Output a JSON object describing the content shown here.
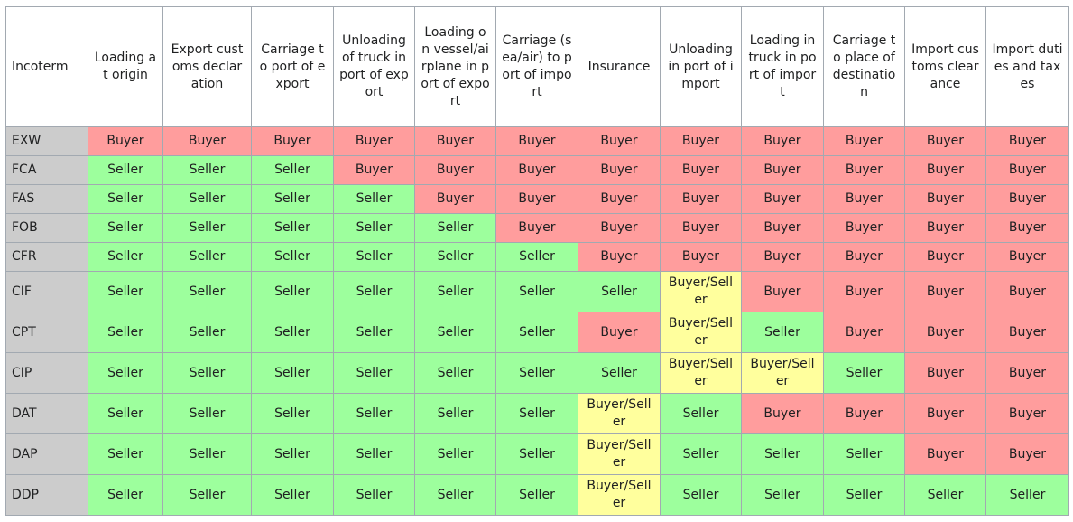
{
  "table": {
    "corner_label": "Incoterm",
    "columns": [
      "Loading at origin",
      "Export customs declaration",
      "Carriage to port of export",
      "Unloading of truck in port of export",
      "Loading on vessel/airplane in port of export",
      "Carriage (sea/air) to port of import",
      "Insurance",
      "Unloading in port of import",
      "Loading in truck in port of import",
      "Carriage to place of destination",
      "Import customs clearance",
      "Import duties and taxes"
    ],
    "rows": [
      {
        "term": "EXW",
        "cells": [
          "Buyer",
          "Buyer",
          "Buyer",
          "Buyer",
          "Buyer",
          "Buyer",
          "Buyer",
          "Buyer",
          "Buyer",
          "Buyer",
          "Buyer",
          "Buyer"
        ]
      },
      {
        "term": "FCA",
        "cells": [
          "Seller",
          "Seller",
          "Seller",
          "Buyer",
          "Buyer",
          "Buyer",
          "Buyer",
          "Buyer",
          "Buyer",
          "Buyer",
          "Buyer",
          "Buyer"
        ]
      },
      {
        "term": "FAS",
        "cells": [
          "Seller",
          "Seller",
          "Seller",
          "Seller",
          "Buyer",
          "Buyer",
          "Buyer",
          "Buyer",
          "Buyer",
          "Buyer",
          "Buyer",
          "Buyer"
        ]
      },
      {
        "term": "FOB",
        "cells": [
          "Seller",
          "Seller",
          "Seller",
          "Seller",
          "Seller",
          "Buyer",
          "Buyer",
          "Buyer",
          "Buyer",
          "Buyer",
          "Buyer",
          "Buyer"
        ]
      },
      {
        "term": "CFR",
        "cells": [
          "Seller",
          "Seller",
          "Seller",
          "Seller",
          "Seller",
          "Seller",
          "Buyer",
          "Buyer",
          "Buyer",
          "Buyer",
          "Buyer",
          "Buyer"
        ]
      },
      {
        "term": "CIF",
        "cells": [
          "Seller",
          "Seller",
          "Seller",
          "Seller",
          "Seller",
          "Seller",
          "Seller",
          "Buyer/Seller",
          "Buyer",
          "Buyer",
          "Buyer",
          "Buyer"
        ]
      },
      {
        "term": "CPT",
        "cells": [
          "Seller",
          "Seller",
          "Seller",
          "Seller",
          "Seller",
          "Seller",
          "Buyer",
          "Buyer/Seller",
          "Seller",
          "Buyer",
          "Buyer",
          "Buyer"
        ]
      },
      {
        "term": "CIP",
        "cells": [
          "Seller",
          "Seller",
          "Seller",
          "Seller",
          "Seller",
          "Seller",
          "Seller",
          "Buyer/Seller",
          "Buyer/Seller",
          "Seller",
          "Buyer",
          "Buyer"
        ]
      },
      {
        "term": "DAT",
        "cells": [
          "Seller",
          "Seller",
          "Seller",
          "Seller",
          "Seller",
          "Seller",
          "Buyer/Seller",
          "Seller",
          "Buyer",
          "Buyer",
          "Buyer",
          "Buyer"
        ]
      },
      {
        "term": "DAP",
        "cells": [
          "Seller",
          "Seller",
          "Seller",
          "Seller",
          "Seller",
          "Seller",
          "Buyer/Seller",
          "Seller",
          "Seller",
          "Seller",
          "Buyer",
          "Buyer"
        ]
      },
      {
        "term": "DDP",
        "cells": [
          "Seller",
          "Seller",
          "Seller",
          "Seller",
          "Seller",
          "Seller",
          "Buyer/Seller",
          "Seller",
          "Seller",
          "Seller",
          "Seller",
          "Seller"
        ]
      }
    ],
    "colors": {
      "buyer": "#ff9d9d",
      "seller": "#9dff9d",
      "both": "#ffff9d",
      "term_bg": "#cccccc",
      "border": "#a2a9b1"
    }
  }
}
